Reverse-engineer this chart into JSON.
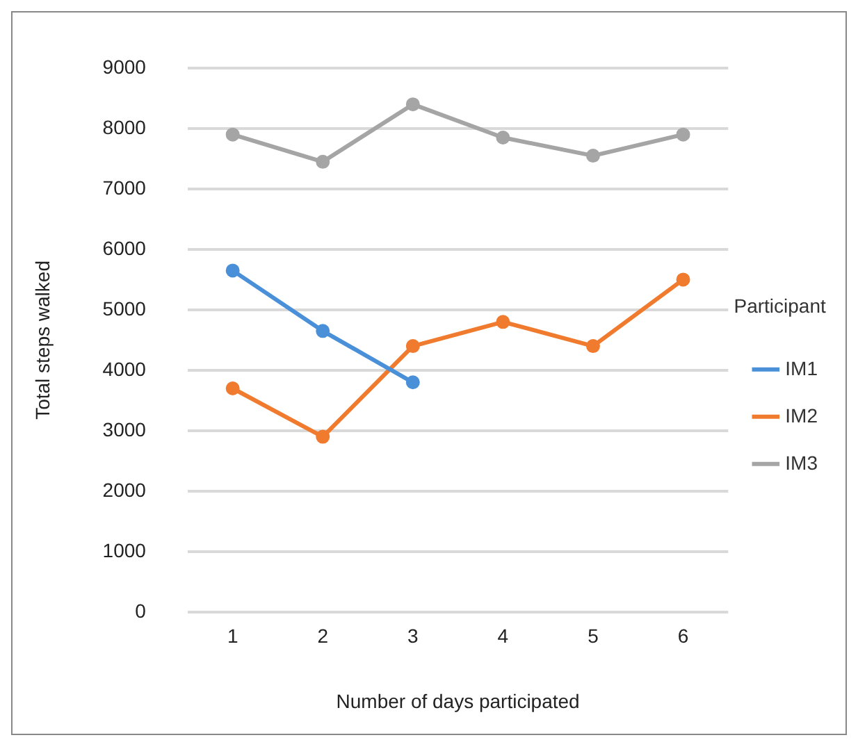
{
  "chart_data": {
    "type": "line",
    "xlabel": "Number of days participated",
    "ylabel": "Total steps walked",
    "legend_title": "Participant",
    "categories": [
      "1",
      "2",
      "3",
      "4",
      "5",
      "6"
    ],
    "series": [
      {
        "name": "IM1",
        "color": "#4a90d9",
        "values": [
          5650,
          4650,
          3800,
          null,
          null,
          null
        ]
      },
      {
        "name": "IM2",
        "color": "#f07b2e",
        "values": [
          3700,
          2900,
          4400,
          4800,
          4400,
          5500
        ]
      },
      {
        "name": "IM3",
        "color": "#a5a5a5",
        "values": [
          7900,
          7450,
          8400,
          7850,
          7550,
          7900
        ]
      }
    ],
    "ylim": [
      0,
      9000
    ],
    "yticks": [
      0,
      1000,
      2000,
      3000,
      4000,
      5000,
      6000,
      7000,
      8000,
      9000
    ],
    "grid": "y",
    "legend": "right",
    "marker": "circle",
    "line_style": "solid"
  }
}
